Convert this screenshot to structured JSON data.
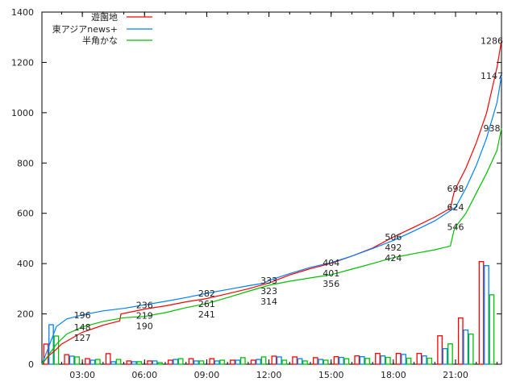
{
  "chart_data": {
    "type": "line",
    "title": "",
    "xlabel": "",
    "ylabel": "",
    "ylim": [
      0,
      1400
    ],
    "yticks": [
      "0",
      "200",
      "400",
      "600",
      "800",
      "1000",
      "1200",
      "1400"
    ],
    "xlim": [
      "01:03",
      "23:13"
    ],
    "xticks": [
      "03:00",
      "06:00",
      "09:00",
      "12:00",
      "15:00",
      "18:00",
      "21:00"
    ],
    "grid": false,
    "legend_position": "top-left",
    "series": [
      {
        "name": "遊園地",
        "color": "#ff0000",
        "cumulative": [
          [
            "01:03",
            0
          ],
          [
            "01:20",
            30
          ],
          [
            "01:45",
            60
          ],
          [
            "02:00",
            80
          ],
          [
            "03:00",
            127
          ],
          [
            "04:00",
            155
          ],
          [
            "04:48",
            172
          ],
          [
            "04:52",
            200
          ],
          [
            "06:00",
            219
          ],
          [
            "07:00",
            232
          ],
          [
            "08:00",
            248
          ],
          [
            "09:00",
            261
          ],
          [
            "10:00",
            280
          ],
          [
            "11:00",
            300
          ],
          [
            "12:00",
            323
          ],
          [
            "13:00",
            355
          ],
          [
            "14:00",
            380
          ],
          [
            "15:00",
            401
          ],
          [
            "16:00",
            430
          ],
          [
            "17:00",
            462
          ],
          [
            "18:00",
            506
          ],
          [
            "19:00",
            545
          ],
          [
            "20:00",
            585
          ],
          [
            "20:45",
            620
          ],
          [
            "20:55",
            680
          ],
          [
            "21:00",
            698
          ],
          [
            "21:30",
            780
          ],
          [
            "22:00",
            880
          ],
          [
            "22:30",
            1000
          ],
          [
            "23:00",
            1180
          ],
          [
            "23:13",
            1286
          ]
        ],
        "labels": [
          [
            "03:00",
            127
          ],
          [
            "06:00",
            219
          ],
          [
            "09:00",
            261
          ],
          [
            "12:00",
            323
          ],
          [
            "15:00",
            401
          ],
          [
            "18:00",
            506
          ],
          [
            "21:00",
            698
          ],
          [
            "23:13",
            1286
          ]
        ],
        "hourly": [
          80,
          38,
          22,
          42,
          13,
          13,
          16,
          22,
          22,
          16,
          16,
          32,
          29,
          26,
          30,
          33,
          43,
          43,
          43,
          113,
          184,
          408
        ]
      },
      {
        "name": "東アジアnews+",
        "color": "#0080ff",
        "cumulative": [
          [
            "01:03",
            0
          ],
          [
            "01:20",
            60
          ],
          [
            "01:45",
            150
          ],
          [
            "02:15",
            180
          ],
          [
            "03:00",
            196
          ],
          [
            "04:00",
            212
          ],
          [
            "05:00",
            222
          ],
          [
            "06:00",
            236
          ],
          [
            "07:00",
            250
          ],
          [
            "08:00",
            265
          ],
          [
            "09:00",
            282
          ],
          [
            "10:00",
            297
          ],
          [
            "11:00",
            312
          ],
          [
            "11:45",
            322
          ],
          [
            "12:00",
            333
          ],
          [
            "13:00",
            360
          ],
          [
            "14:00",
            385
          ],
          [
            "15:00",
            404
          ],
          [
            "16:00",
            430
          ],
          [
            "17:00",
            460
          ],
          [
            "18:00",
            492
          ],
          [
            "19:00",
            530
          ],
          [
            "20:00",
            570
          ],
          [
            "21:00",
            624
          ],
          [
            "21:30",
            700
          ],
          [
            "22:00",
            790
          ],
          [
            "22:30",
            900
          ],
          [
            "23:00",
            1040
          ],
          [
            "23:13",
            1147
          ]
        ],
        "labels": [
          [
            "03:00",
            196
          ],
          [
            "06:00",
            236
          ],
          [
            "09:00",
            282
          ],
          [
            "12:00",
            333
          ],
          [
            "15:00",
            404
          ],
          [
            "18:00",
            492
          ],
          [
            "21:00",
            624
          ],
          [
            "23:13",
            1147
          ]
        ],
        "hourly": [
          157,
          32,
          16,
          10,
          10,
          13,
          19,
          13,
          13,
          16,
          19,
          29,
          22,
          19,
          27,
          30,
          33,
          39,
          33,
          62,
          136,
          392
        ]
      },
      {
        "name": "半角かな",
        "color": "#00c000",
        "cumulative": [
          [
            "01:03",
            0
          ],
          [
            "01:45",
            80
          ],
          [
            "02:15",
            120
          ],
          [
            "03:00",
            148
          ],
          [
            "04:00",
            170
          ],
          [
            "05:00",
            185
          ],
          [
            "06:00",
            190
          ],
          [
            "07:00",
            205
          ],
          [
            "08:00",
            225
          ],
          [
            "09:00",
            241
          ],
          [
            "10:00",
            265
          ],
          [
            "11:00",
            290
          ],
          [
            "12:00",
            314
          ],
          [
            "13:00",
            330
          ],
          [
            "14:00",
            343
          ],
          [
            "15:00",
            356
          ],
          [
            "16:00",
            378
          ],
          [
            "17:00",
            400
          ],
          [
            "18:00",
            424
          ],
          [
            "19:00",
            440
          ],
          [
            "20:00",
            455
          ],
          [
            "20:45",
            470
          ],
          [
            "20:55",
            530
          ],
          [
            "21:00",
            546
          ],
          [
            "21:30",
            600
          ],
          [
            "22:00",
            680
          ],
          [
            "22:30",
            760
          ],
          [
            "23:00",
            850
          ],
          [
            "23:13",
            938
          ]
        ],
        "labels": [
          [
            "03:00",
            148
          ],
          [
            "06:00",
            190
          ],
          [
            "09:00",
            241
          ],
          [
            "12:00",
            314
          ],
          [
            "15:00",
            356
          ],
          [
            "18:00",
            424
          ],
          [
            "21:00",
            546
          ],
          [
            "23:13",
            938
          ]
        ],
        "hourly": [
          112,
          29,
          19,
          19,
          10,
          6,
          22,
          13,
          16,
          26,
          29,
          16,
          13,
          16,
          22,
          23,
          27,
          24,
          24,
          81,
          120,
          276
        ]
      }
    ],
    "bar_hours": [
      1,
      2,
      3,
      4,
      5,
      6,
      7,
      8,
      9,
      10,
      11,
      12,
      13,
      14,
      15,
      16,
      17,
      18,
      19,
      20,
      21,
      22
    ]
  }
}
